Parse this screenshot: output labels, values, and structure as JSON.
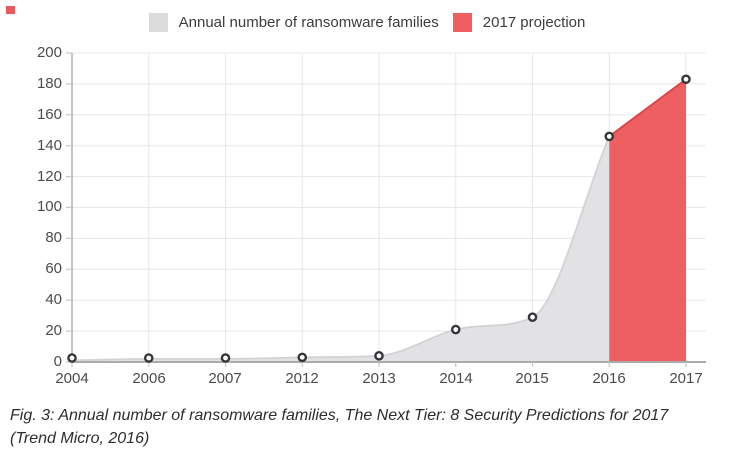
{
  "legend": {
    "items": [
      {
        "label": "Annual number of ransomware families",
        "swatch_color": "#dcdcde"
      },
      {
        "label": "2017 projection",
        "swatch_color": "#ed5f60"
      }
    ]
  },
  "chart_data": {
    "type": "area",
    "categories": [
      "2004",
      "2006",
      "2007",
      "2012",
      "2013",
      "2014",
      "2015",
      "2016",
      "2017"
    ],
    "series": [
      {
        "name": "Annual number of ransomware families",
        "values": [
          1,
          2,
          2,
          3,
          4,
          21,
          29,
          146,
          null
        ],
        "fill_color": "#e2e2e4",
        "line_color": "#d3d3d6"
      },
      {
        "name": "2017 projection",
        "values": [
          null,
          null,
          null,
          null,
          null,
          null,
          null,
          146,
          183
        ],
        "fill_color": "#ed5f60",
        "line_color": "#de4549"
      }
    ],
    "ylim": [
      0,
      200
    ],
    "y_tick_step": 20,
    "y_tick_labels": [
      "200",
      "180",
      "160",
      "140",
      "120",
      "100",
      "80",
      "60",
      "40",
      "20",
      "0"
    ],
    "grid": true,
    "legend_position": "top",
    "marker": {
      "ring_color": "#35363a",
      "fill_color": "#ffffff"
    },
    "grid_color": "#e8e8ea",
    "axis_color": "#ababad",
    "tick_color": "#c6c6c8"
  },
  "caption": {
    "line1": "Fig. 3: Annual number of ransomware families, The Next Tier: 8 Security Predictions for 2017",
    "line2": "(Trend Micro, 2016)"
  },
  "decor": {
    "corner_mark_color": "#e85a5b"
  }
}
